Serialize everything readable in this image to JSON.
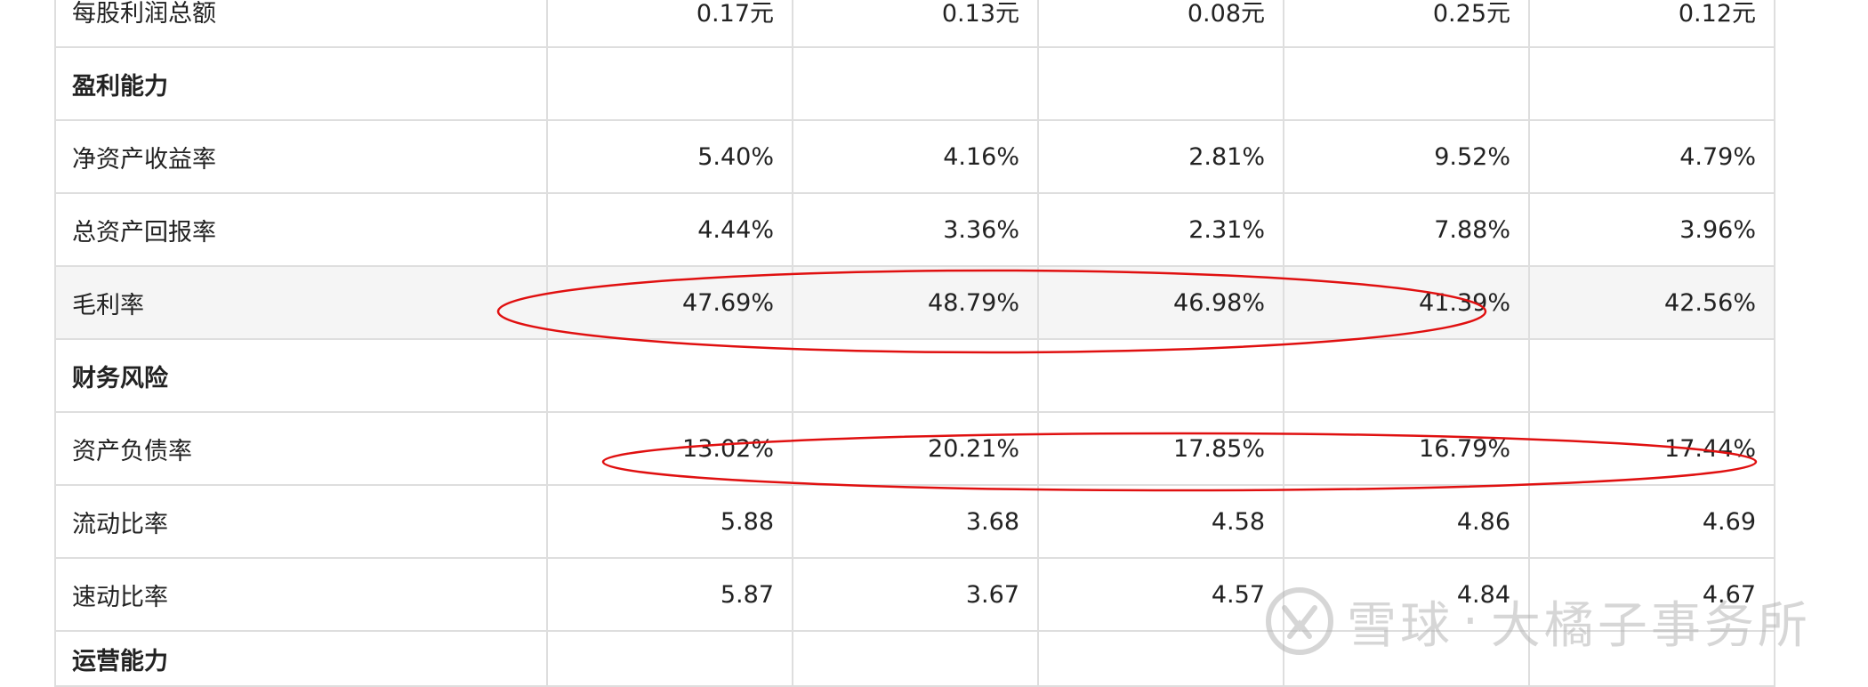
{
  "table": {
    "rows": [
      {
        "label": "每股利润总额",
        "values": [
          "0.17元",
          "0.13元",
          "0.08元",
          "0.25元",
          "0.12元"
        ]
      },
      {
        "label": "盈利能力",
        "section": true,
        "values": [
          "",
          "",
          "",
          "",
          ""
        ]
      },
      {
        "label": "净资产收益率",
        "values": [
          "5.40%",
          "4.16%",
          "2.81%",
          "9.52%",
          "4.79%"
        ]
      },
      {
        "label": "总资产回报率",
        "values": [
          "4.44%",
          "3.36%",
          "2.31%",
          "7.88%",
          "3.96%"
        ]
      },
      {
        "label": "毛利率",
        "highlight": true,
        "values": [
          "47.69%",
          "48.79%",
          "46.98%",
          "41.39%",
          "42.56%"
        ]
      },
      {
        "label": "财务风险",
        "section": true,
        "values": [
          "",
          "",
          "",
          "",
          ""
        ]
      },
      {
        "label": "资产负债率",
        "values": [
          "13.02%",
          "20.21%",
          "17.85%",
          "16.79%",
          "17.44%"
        ]
      },
      {
        "label": "流动比率",
        "values": [
          "5.88",
          "3.68",
          "4.58",
          "4.86",
          "4.69"
        ]
      },
      {
        "label": "速动比率",
        "values": [
          "5.87",
          "3.67",
          "4.57",
          "4.84",
          "4.67"
        ]
      },
      {
        "label": "运营能力",
        "section": true,
        "values": [
          "",
          "",
          "",
          "",
          ""
        ]
      }
    ]
  },
  "annotations": {
    "color": "#e01010",
    "ellipses": [
      "gross-margin-ellipse",
      "debt-ratio-ellipse"
    ]
  },
  "watermark": {
    "brand": "雪球",
    "separator": "·",
    "author": "大橘子事务所",
    "logo_icon": "snowball-logo-icon"
  }
}
